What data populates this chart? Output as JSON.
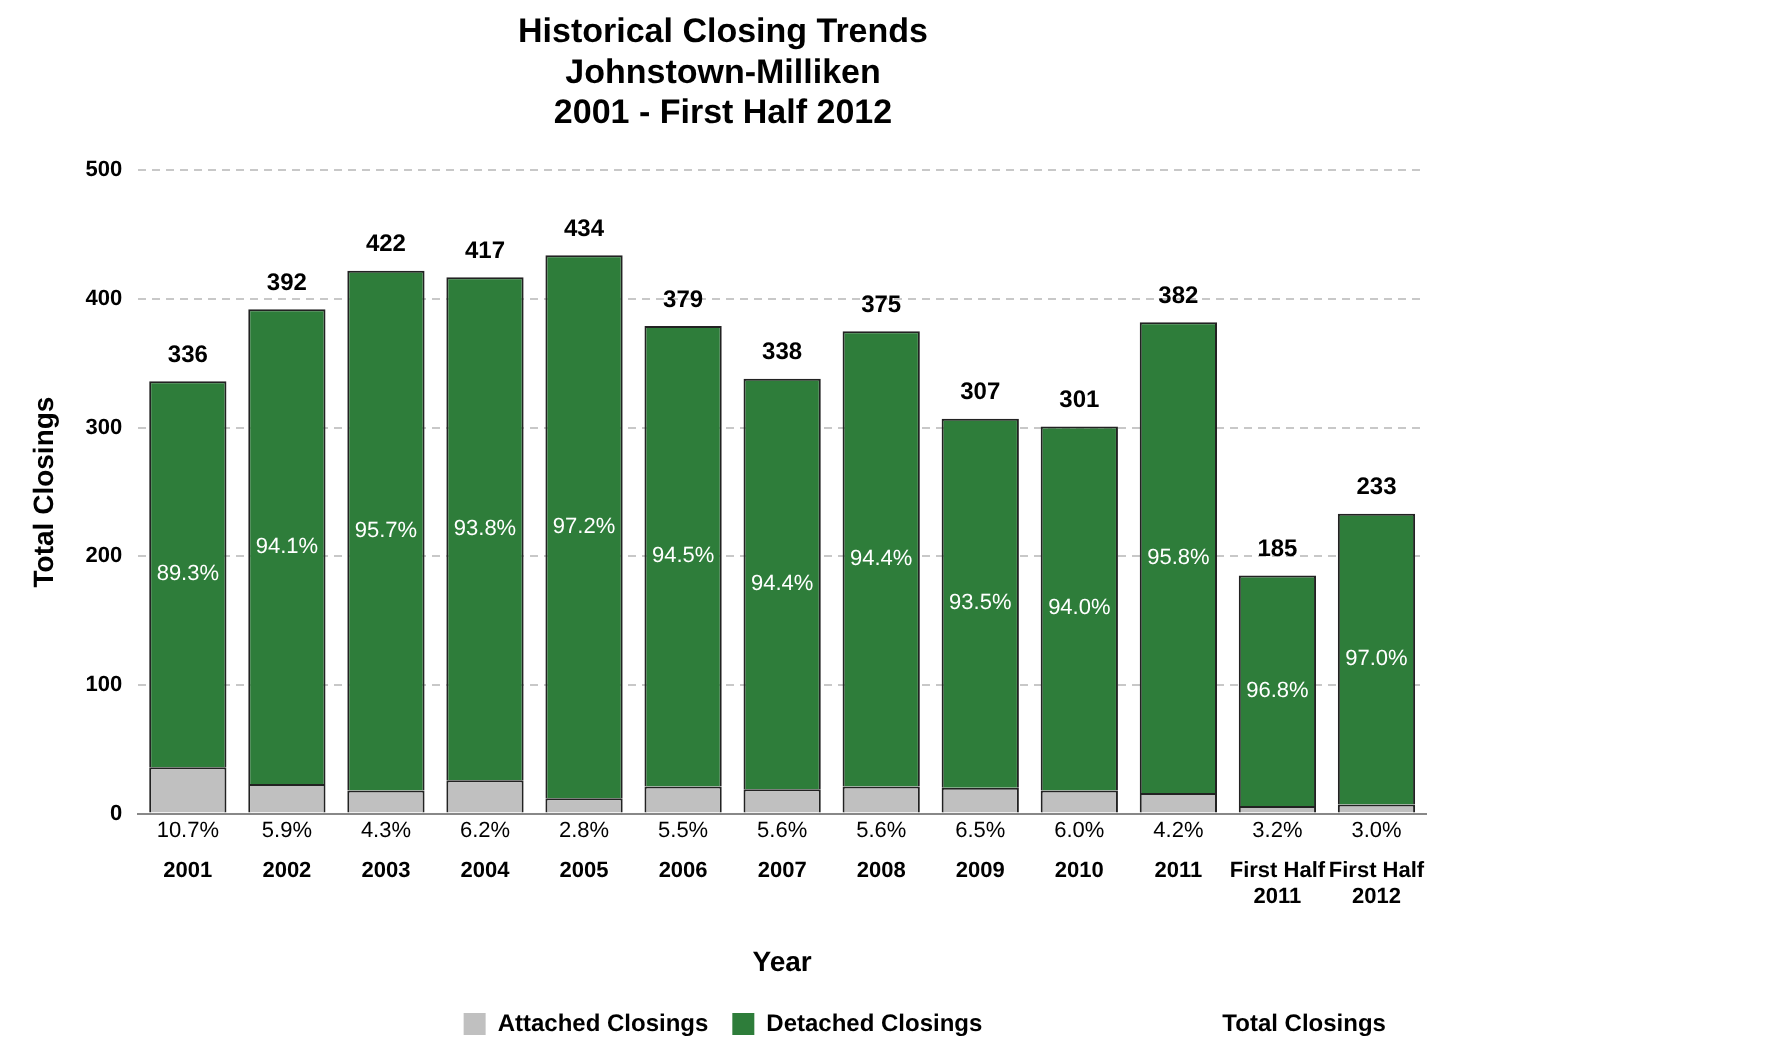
{
  "chart_data": {
    "type": "bar",
    "title": "Historical Closing Trends\nJohnstown-Milliken\n2001 - First Half 2012",
    "xlabel": "Year",
    "ylabel": "Total Closings",
    "categories": [
      "2001",
      "2002",
      "2003",
      "2004",
      "2005",
      "2006",
      "2007",
      "2008",
      "2009",
      "2010",
      "2011",
      "First Half 2011",
      "First Half 2012"
    ],
    "stacked": true,
    "series": [
      {
        "name": "Attached Closings",
        "color": "#c0c0c0",
        "values": [
          36,
          23,
          18,
          26,
          12,
          21,
          19,
          21,
          20,
          18,
          16,
          6,
          7
        ]
      },
      {
        "name": "Detached Closings",
        "color": "#2e7d3a",
        "values": [
          300,
          369,
          404,
          391,
          422,
          358,
          319,
          354,
          287,
          283,
          366,
          179,
          226
        ]
      }
    ],
    "totals": [
      "336",
      "392",
      "422",
      "417",
      "434",
      "379",
      "338",
      "375",
      "307",
      "301",
      "382",
      "185",
      "233"
    ],
    "ylim": [
      0,
      500
    ],
    "yticks": [
      0,
      100,
      200,
      300,
      400,
      500
    ],
    "grid": "y",
    "legend": "bottom",
    "annotations": [
      "Total Closings",
      {
        "text": "10.7%",
        "x": "2001",
        "y": 0
      },
      {
        "text": "5.9%",
        "x": "2002",
        "y": 0
      },
      {
        "text": "4.3%",
        "x": "2003",
        "y": 0
      },
      {
        "text": "6.2%",
        "x": "2004",
        "y": 0
      },
      {
        "text": "2.8%",
        "x": "2005",
        "y": 0
      },
      {
        "text": "5.5%",
        "x": "2006",
        "y": 0
      },
      {
        "text": "5.6%",
        "x": "2007",
        "y": 0
      },
      {
        "text": "5.6%",
        "x": "2008",
        "y": 0
      },
      {
        "text": "6.5%",
        "x": "2009",
        "y": 0
      },
      {
        "text": "6.0%",
        "x": "2010",
        "y": 0
      },
      {
        "text": "4.2%",
        "x": "2011",
        "y": 0
      },
      {
        "text": "3.2%",
        "x": "First Half 2011",
        "y": 0
      },
      {
        "text": "3.0%",
        "x": "First Half 2012",
        "y": 0
      },
      "89.3%",
      "94.1%",
      "95.7%",
      "93.8%",
      "97.2%",
      "94.5%",
      "94.4%",
      "94.4%",
      "93.5%",
      "94.0%",
      "95.8%",
      "96.8%",
      "97.0%"
    ]
  }
}
